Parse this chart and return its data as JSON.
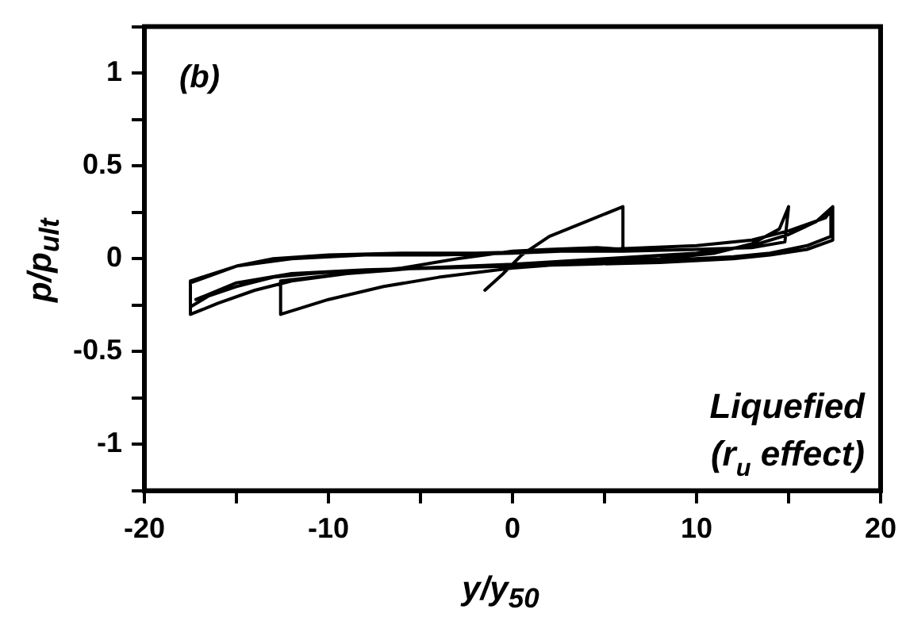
{
  "chart_data": {
    "type": "line",
    "xlabel": "y/y$_{50}$",
    "ylabel": "p/p$_{ult}$",
    "annotations": [
      "(b)",
      "Liquefied",
      "(r$_{u}$ effect)"
    ],
    "series": [
      {
        "color": "#000000",
        "x": [
          -1.5,
          -0.5,
          0.5,
          2,
          4,
          6,
          6,
          4.6,
          2,
          0,
          -3,
          -6,
          -9,
          -12.6,
          -12.6,
          -10,
          -7,
          -4,
          0,
          4,
          8,
          11,
          13,
          14.5,
          15,
          14.8,
          13,
          10,
          6,
          2,
          -2,
          -6,
          -10,
          -13,
          -15,
          -17.5,
          -17.5,
          -16,
          -14,
          -12,
          -9,
          -5,
          0,
          5,
          10,
          13,
          15,
          16.5,
          17.4,
          17.4,
          16,
          14,
          12,
          8,
          4,
          0,
          -4,
          -8,
          -11,
          -13,
          -15,
          -16.5,
          -17.5,
          -17.5,
          -15,
          -12,
          -8,
          -4,
          0,
          5,
          10,
          13,
          15,
          17,
          17.3,
          17.3,
          16,
          14,
          12,
          8,
          4,
          0,
          -4,
          -8,
          -12,
          -15,
          -17.2
        ],
        "values": [
          -0.17,
          -0.08,
          0.02,
          0.12,
          0.2,
          0.28,
          0.05,
          0.06,
          0.05,
          0.04,
          0.0,
          -0.05,
          -0.08,
          -0.12,
          -0.3,
          -0.22,
          -0.15,
          -0.1,
          -0.05,
          -0.02,
          0.0,
          0.03,
          0.08,
          0.16,
          0.28,
          0.09,
          0.06,
          0.05,
          0.04,
          0.04,
          0.03,
          0.03,
          0.02,
          0.0,
          -0.04,
          -0.12,
          -0.3,
          -0.24,
          -0.17,
          -0.12,
          -0.08,
          -0.05,
          -0.03,
          0.0,
          0.03,
          0.07,
          0.13,
          0.2,
          0.28,
          0.1,
          0.05,
          0.02,
          0.0,
          -0.02,
          -0.03,
          -0.04,
          -0.05,
          -0.06,
          -0.08,
          -0.1,
          -0.15,
          -0.2,
          -0.26,
          -0.13,
          -0.04,
          0.0,
          0.02,
          0.02,
          0.03,
          0.05,
          0.07,
          0.1,
          0.15,
          0.22,
          0.26,
          0.12,
          0.07,
          0.03,
          0.01,
          -0.01,
          -0.03,
          -0.04,
          -0.05,
          -0.06,
          -0.08,
          -0.13,
          -0.22
        ]
      }
    ],
    "xlim": [
      -20,
      20
    ],
    "xticks": [
      -20,
      {
        "value": -15,
        "label": null
      },
      -10,
      {
        "value": -5,
        "label": null
      },
      0,
      {
        "value": 5,
        "label": null
      },
      10,
      {
        "value": 15,
        "label": null
      },
      20
    ],
    "ylim": [
      -1.25,
      1.25
    ],
    "yticks": [
      {
        "value": -1.25,
        "label": null
      },
      -1,
      {
        "value": -0.75,
        "label": null
      },
      -0.5,
      {
        "value": -0.25,
        "label": null
      },
      0,
      {
        "value": 0.25,
        "label": null
      },
      0.5,
      {
        "value": 0.75,
        "label": null
      },
      1,
      {
        "value": 1.25,
        "label": null
      }
    ],
    "grid": false,
    "legend": false,
    "marker": "none",
    "line_style": "solid"
  }
}
